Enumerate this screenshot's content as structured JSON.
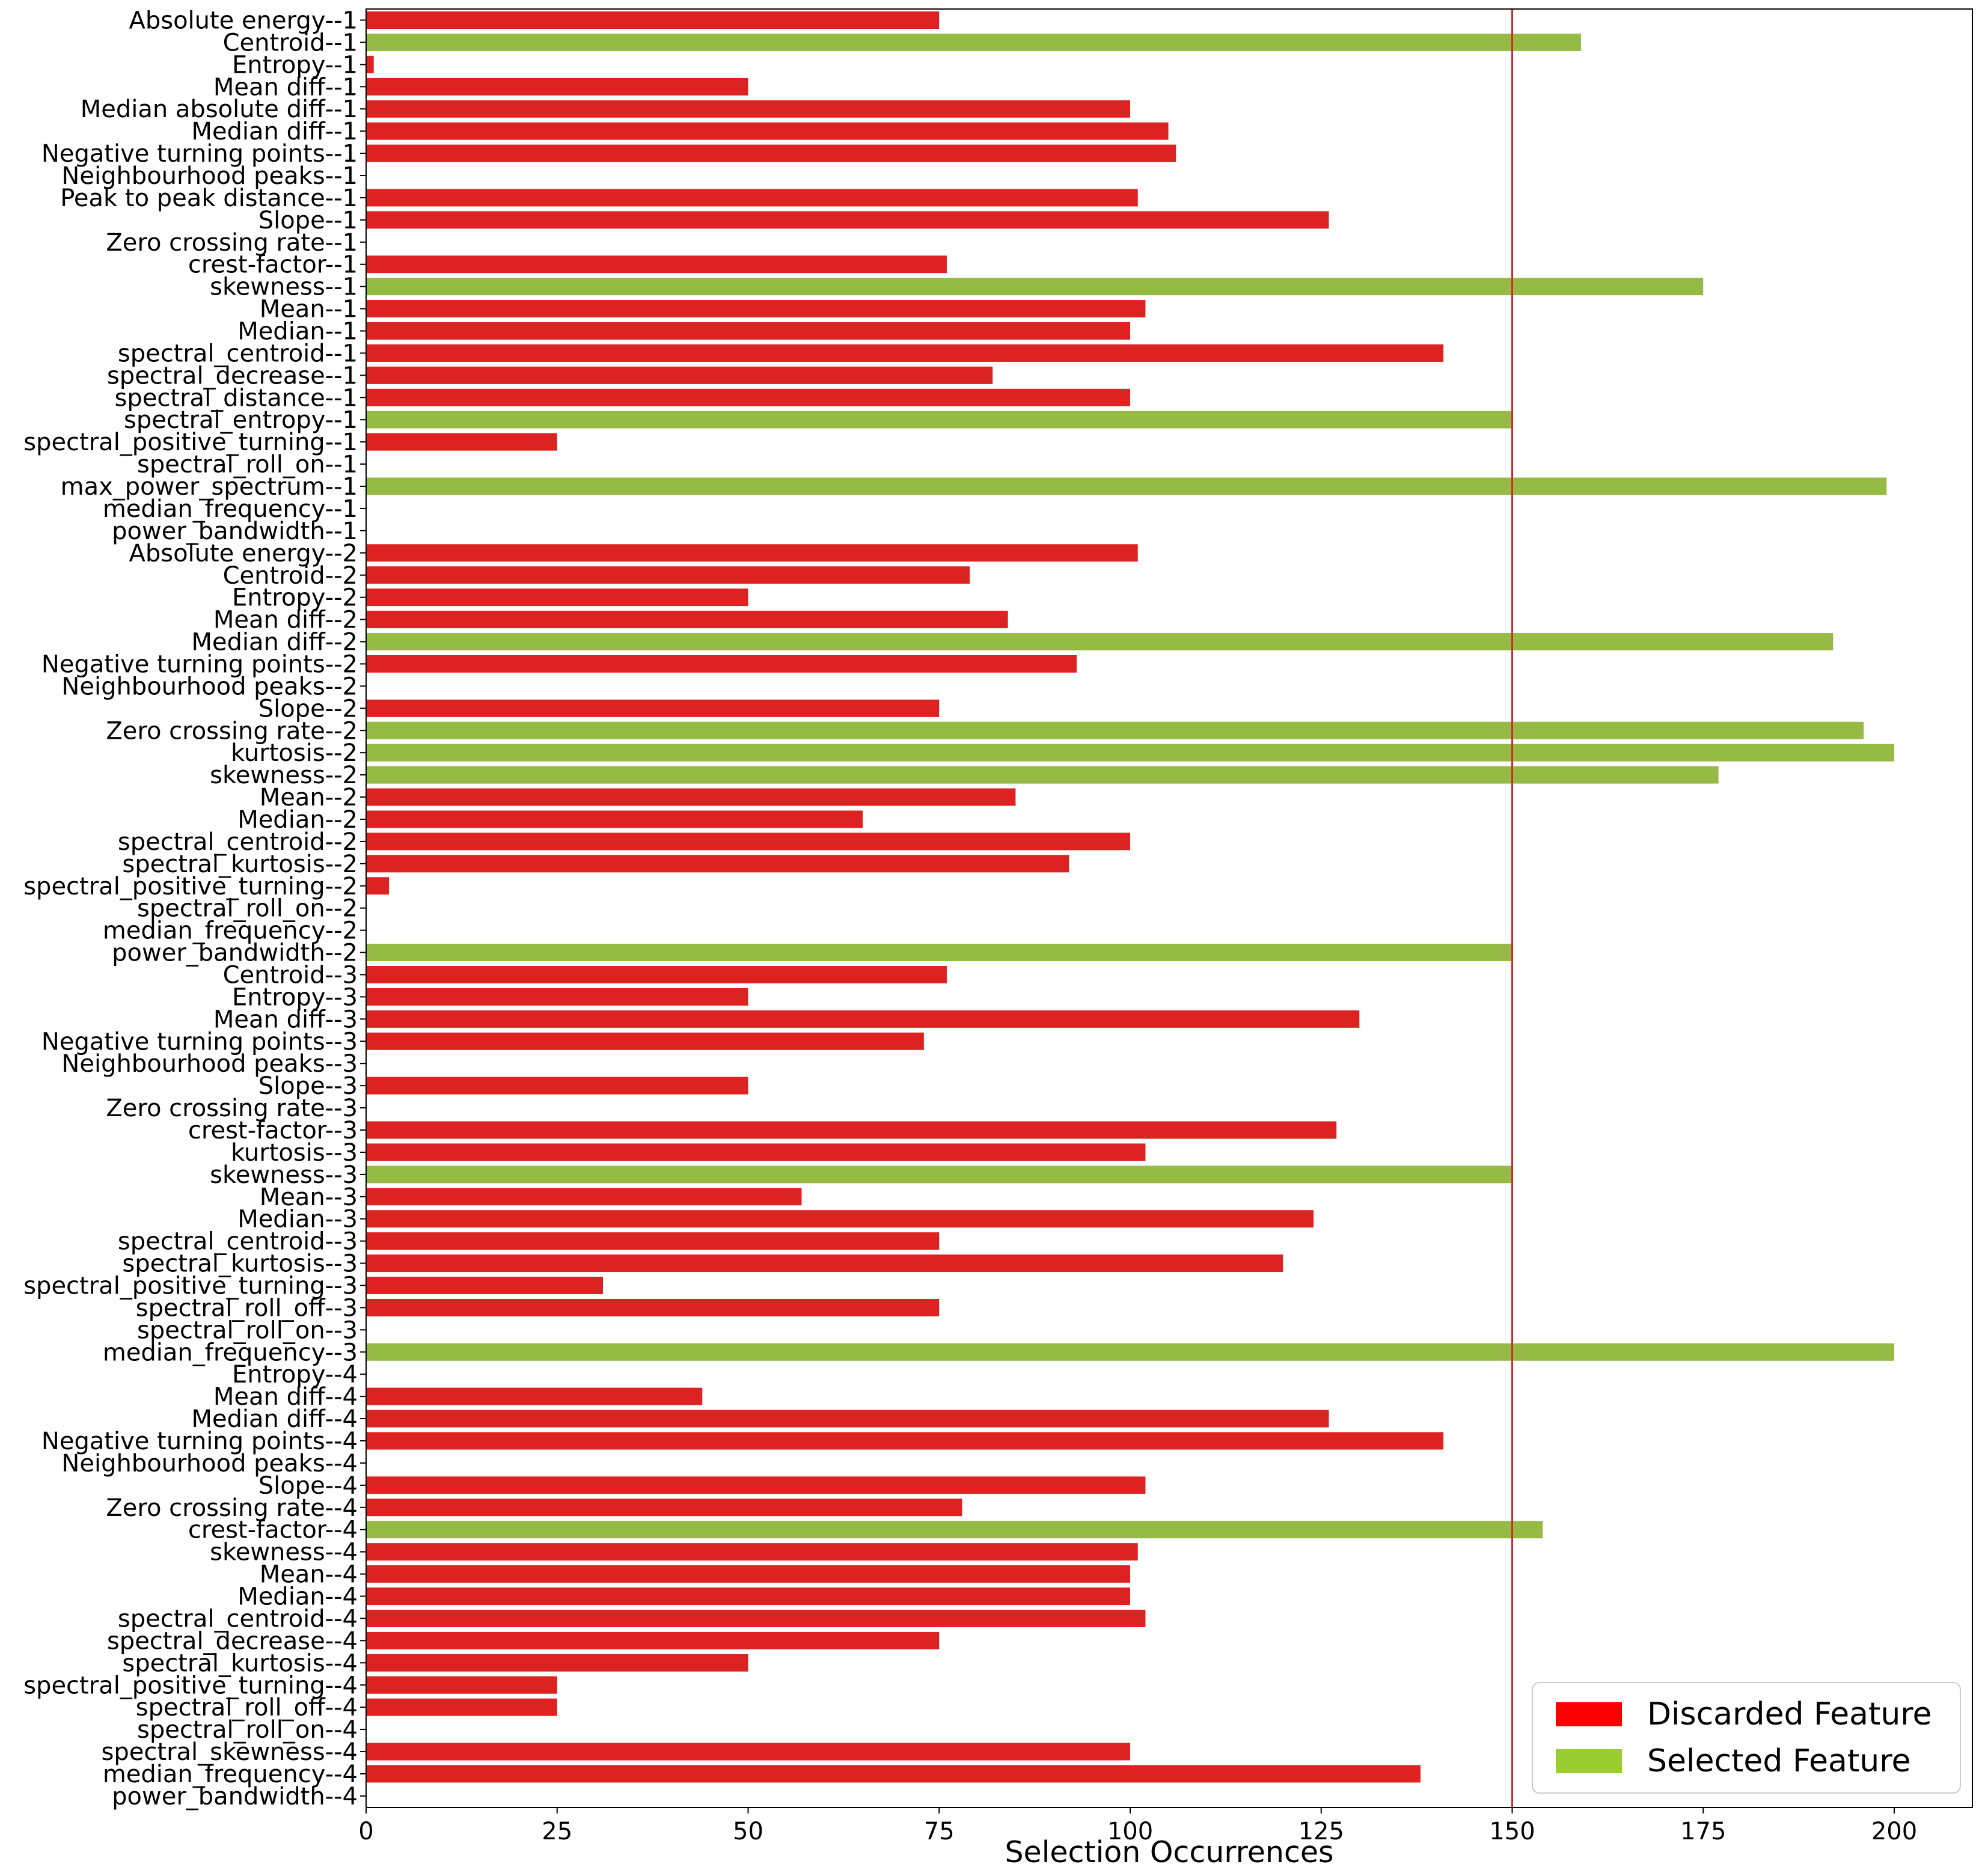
{
  "chart_data": {
    "type": "bar",
    "orientation": "horizontal",
    "title": "",
    "xlabel": "Selection Occurrences",
    "ylabel": "",
    "xlim": [
      0,
      210
    ],
    "x_ticks": [
      0,
      25,
      50,
      75,
      100,
      125,
      150,
      175,
      200
    ],
    "x_tick_labels": [
      "0",
      "25",
      "50",
      "75",
      "100",
      "125",
      "150",
      "175",
      "200"
    ],
    "threshold": 150,
    "grid": false,
    "legend": {
      "placement": "bottom-right",
      "entries": [
        {
          "label": "Discarded Feature",
          "color": "#ff0000"
        },
        {
          "label": "Selected Feature",
          "color": "#9acd32"
        }
      ]
    },
    "colors": {
      "discarded": "#dd2222",
      "selected": "#96bb45",
      "threshold": "#d62728"
    },
    "categories": [
      "Absolute energy--1",
      "Centroid--1",
      "Entropy--1",
      "Mean diff--1",
      "Median absolute diff--1",
      "Median diff--1",
      "Negative turning points--1",
      "Neighbourhood peaks--1",
      "Peak to peak distance--1",
      "Slope--1",
      "Zero crossing rate--1",
      "crest-factor--1",
      "skewness--1",
      "Mean--1",
      "Median--1",
      "spectral_centroid--1",
      "spectral_decrease--1",
      "spectral_distance--1",
      "spectral_entropy--1",
      "spectral_positive_turning--1",
      "spectral_roll_on--1",
      "max_power_spectrum--1",
      "median_frequency--1",
      "power_bandwidth--1",
      "Absolute energy--2",
      "Centroid--2",
      "Entropy--2",
      "Mean diff--2",
      "Median diff--2",
      "Negative turning points--2",
      "Neighbourhood peaks--2",
      "Slope--2",
      "Zero crossing rate--2",
      "kurtosis--2",
      "skewness--2",
      "Mean--2",
      "Median--2",
      "spectral_centroid--2",
      "spectral_kurtosis--2",
      "spectral_positive_turning--2",
      "spectral_roll_on--2",
      "median_frequency--2",
      "power_bandwidth--2",
      "Centroid--3",
      "Entropy--3",
      "Mean diff--3",
      "Negative turning points--3",
      "Neighbourhood peaks--3",
      "Slope--3",
      "Zero crossing rate--3",
      "crest-factor--3",
      "kurtosis--3",
      "skewness--3",
      "Mean--3",
      "Median--3",
      "spectral_centroid--3",
      "spectral_kurtosis--3",
      "spectral_positive_turning--3",
      "spectral_roll_off--3",
      "spectral_roll_on--3",
      "median_frequency--3",
      "Entropy--4",
      "Mean diff--4",
      "Median diff--4",
      "Negative turning points--4",
      "Neighbourhood peaks--4",
      "Slope--4",
      "Zero crossing rate--4",
      "crest-factor--4",
      "skewness--4",
      "Mean--4",
      "Median--4",
      "spectral_centroid--4",
      "spectral_decrease--4",
      "spectral_kurtosis--4",
      "spectral_positive_turning--4",
      "spectral_roll_off--4",
      "spectral_roll_on--4",
      "spectral_skewness--4",
      "median_frequency--4",
      "power_bandwidth--4"
    ],
    "values": [
      75,
      159,
      1,
      50,
      100,
      105,
      106,
      0,
      101,
      126,
      0,
      76,
      175,
      102,
      100,
      141,
      82,
      100,
      150,
      25,
      0,
      199,
      0,
      0,
      101,
      79,
      50,
      84,
      192,
      93,
      0,
      75,
      196,
      200,
      177,
      85,
      65,
      100,
      92,
      3,
      0,
      0,
      150,
      76,
      50,
      130,
      73,
      0,
      50,
      0,
      127,
      102,
      150,
      57,
      124,
      75,
      120,
      31,
      75,
      0,
      200,
      0,
      44,
      126,
      141,
      0,
      102,
      78,
      154,
      101,
      100,
      100,
      102,
      75,
      50,
      25,
      25,
      0,
      100,
      138,
      0
    ],
    "selected": [
      false,
      true,
      false,
      false,
      false,
      false,
      false,
      false,
      false,
      false,
      false,
      false,
      true,
      false,
      false,
      false,
      false,
      false,
      true,
      false,
      false,
      true,
      false,
      false,
      false,
      false,
      false,
      false,
      true,
      false,
      false,
      false,
      true,
      true,
      true,
      false,
      false,
      false,
      false,
      false,
      false,
      false,
      true,
      false,
      false,
      false,
      false,
      false,
      false,
      false,
      false,
      false,
      true,
      false,
      false,
      false,
      false,
      false,
      false,
      false,
      true,
      false,
      false,
      false,
      false,
      false,
      false,
      false,
      true,
      false,
      false,
      false,
      false,
      false,
      false,
      false,
      false,
      false,
      false,
      false,
      false
    ]
  }
}
